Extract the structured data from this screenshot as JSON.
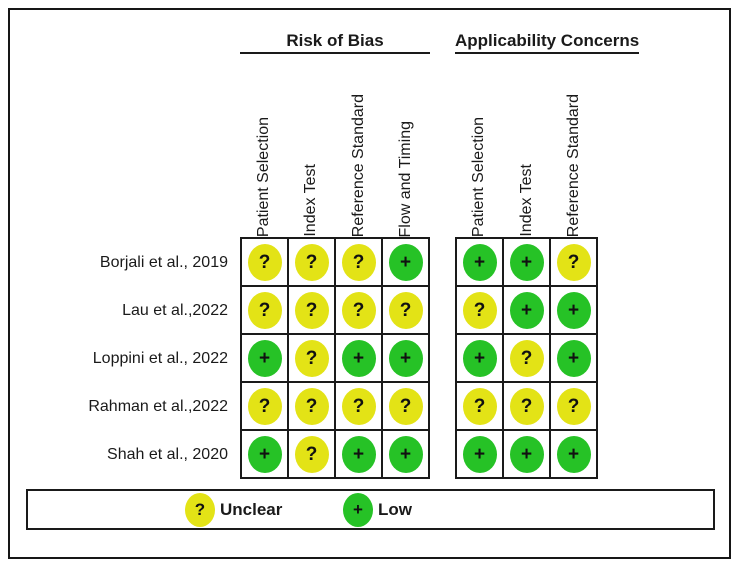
{
  "chart_data": {
    "type": "heatmap",
    "sections": [
      {
        "key": "risk_of_bias",
        "name": "Risk of Bias",
        "columns": [
          "Patient Selection",
          "Index Test",
          "Reference Standard",
          "Flow and Timing"
        ]
      },
      {
        "key": "applicability_concerns",
        "name": "Applicability Concerns",
        "columns": [
          "Patient Selection",
          "Index Test",
          "Reference Standard"
        ]
      }
    ],
    "rows": [
      {
        "study": "Borjali et al., 2019",
        "risk_of_bias": [
          "unclear",
          "unclear",
          "unclear",
          "low"
        ],
        "applicability_concerns": [
          "low",
          "low",
          "unclear"
        ]
      },
      {
        "study": "Lau et al.,2022",
        "risk_of_bias": [
          "unclear",
          "unclear",
          "unclear",
          "unclear"
        ],
        "applicability_concerns": [
          "unclear",
          "low",
          "low"
        ]
      },
      {
        "study": "Loppini et al., 2022",
        "risk_of_bias": [
          "low",
          "unclear",
          "low",
          "low"
        ],
        "applicability_concerns": [
          "low",
          "unclear",
          "low"
        ]
      },
      {
        "study": "Rahman et al.,2022",
        "risk_of_bias": [
          "unclear",
          "unclear",
          "unclear",
          "unclear"
        ],
        "applicability_concerns": [
          "unclear",
          "unclear",
          "unclear"
        ]
      },
      {
        "study": "Shah et al., 2020",
        "risk_of_bias": [
          "low",
          "unclear",
          "low",
          "low"
        ],
        "applicability_concerns": [
          "low",
          "low",
          "low"
        ]
      }
    ],
    "judgments": {
      "unclear": {
        "symbol": "?",
        "label": "Unclear",
        "color": "#e3e316"
      },
      "low": {
        "symbol": "+",
        "label": "Low",
        "color": "#26c226"
      }
    },
    "legend": [
      {
        "key": "unclear",
        "symbol": "?",
        "label": "Unclear",
        "color": "#e3e316"
      },
      {
        "key": "low",
        "symbol": "+",
        "label": "Low",
        "color": "#26c226"
      }
    ],
    "symbol_color": "#111111",
    "grid_line_color": "#1a1a1a",
    "layout": {
      "legend_position": "bottom",
      "column_header_rotation": "vertical-bottom-to-top"
    }
  }
}
